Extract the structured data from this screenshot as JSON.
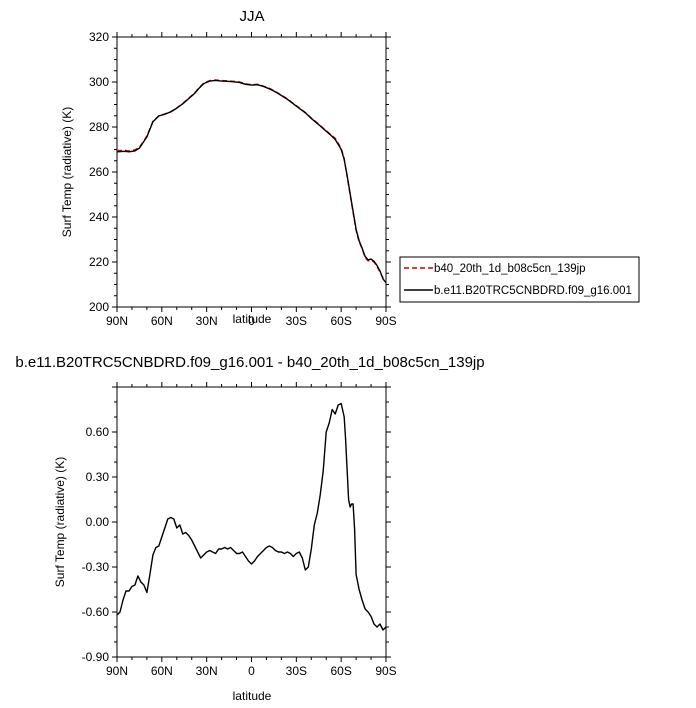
{
  "chart_data": [
    {
      "type": "line",
      "title": "JJA",
      "xlabel": "latitude",
      "ylabel": "Surf Temp (radiative) (K)",
      "xlim": [
        90,
        -90
      ],
      "ylim": [
        200,
        320
      ],
      "xticks": [
        "90N",
        "60N",
        "30N",
        "0",
        "30S",
        "60S",
        "90S"
      ],
      "yticks": [
        "200",
        "220",
        "240",
        "260",
        "280",
        "300",
        "320"
      ],
      "legend_position": "right",
      "grid": false,
      "series": [
        {
          "name": "b40_20th_1d_b08c5cn_139jp",
          "color": "#cc0000",
          "style": "dashed",
          "x": [
            90,
            85,
            82,
            78,
            75,
            70,
            66,
            62,
            58,
            54,
            50,
            46,
            42,
            38,
            35,
            32,
            28,
            24,
            20,
            16,
            12,
            8,
            4,
            0,
            -4,
            -8,
            -12,
            -16,
            -20,
            -24,
            -28,
            -32,
            -36,
            -40,
            -44,
            -48,
            -52,
            -56,
            -60,
            -62,
            -64,
            -66,
            -68,
            -70,
            -72,
            -74,
            -76,
            -78,
            -80,
            -82,
            -84,
            -86,
            -88,
            -90
          ],
          "y": [
            269.5,
            269.6,
            269.4,
            269.8,
            271,
            276,
            282.5,
            285,
            285.8,
            286.8,
            288.5,
            290.5,
            292.8,
            295.2,
            297.5,
            299.5,
            300.6,
            300.9,
            300.6,
            300.5,
            300.3,
            300,
            299.2,
            298.8,
            299,
            298.2,
            297.2,
            295.8,
            294.2,
            292.5,
            290.5,
            288.5,
            286.5,
            284,
            281.8,
            279.5,
            277.2,
            275,
            270.5,
            266,
            258,
            250,
            242,
            234,
            229,
            226,
            222,
            220.5,
            220.8,
            220,
            218,
            215.5,
            213,
            211.5
          ]
        },
        {
          "name": "b.e11.B20TRC5CNBDRD.f09_g16.001",
          "color": "#000000",
          "style": "solid",
          "x": [
            90,
            85,
            82,
            78,
            75,
            70,
            66,
            62,
            58,
            54,
            50,
            46,
            42,
            38,
            35,
            32,
            28,
            24,
            20,
            16,
            12,
            8,
            4,
            0,
            -4,
            -8,
            -12,
            -16,
            -20,
            -24,
            -28,
            -32,
            -36,
            -40,
            -44,
            -48,
            -52,
            -56,
            -60,
            -62,
            -64,
            -66,
            -68,
            -70,
            -72,
            -74,
            -76,
            -78,
            -80,
            -82,
            -84,
            -86,
            -88,
            -90
          ],
          "y": [
            269,
            269.2,
            269,
            269.4,
            270.6,
            275.6,
            282.3,
            284.9,
            285.7,
            286.7,
            288.4,
            290.3,
            292.6,
            295,
            297.3,
            299.3,
            300.4,
            300.7,
            300.4,
            300.3,
            300.1,
            299.8,
            299,
            298.6,
            298.8,
            298,
            297,
            295.6,
            294,
            292.3,
            290.3,
            288.3,
            286.3,
            283.8,
            281.6,
            279.3,
            277,
            274.5,
            270,
            265.5,
            258.5,
            250.5,
            242.5,
            234.5,
            229.5,
            226.2,
            222.5,
            221,
            221.3,
            220.3,
            218.5,
            216,
            212.5,
            210.8
          ]
        }
      ]
    },
    {
      "type": "line",
      "title": "b.e11.B20TRC5CNBDRD.f09_g16.001 - b40_20th_1d_b08c5cn_139jp",
      "xlabel": "latitude",
      "ylabel": "Surf Temp (radiative) (K)",
      "xlim": [
        90,
        -90
      ],
      "ylim": [
        -0.9,
        0.9
      ],
      "xticks": [
        "90N",
        "60N",
        "30N",
        "0",
        "30S",
        "60S",
        "90S"
      ],
      "yticks": [
        "-0.90",
        "-0.60",
        "-0.30",
        "0.00",
        "0.30",
        "0.60"
      ],
      "grid": false,
      "series": [
        {
          "color": "#000000",
          "style": "solid",
          "x": [
            90,
            88,
            86,
            84,
            82,
            80,
            78,
            76,
            74,
            72,
            70,
            68,
            66,
            64,
            62,
            60,
            58,
            56,
            54,
            52,
            50,
            48,
            46,
            44,
            42,
            40,
            38,
            36,
            34,
            32,
            30,
            28,
            26,
            24,
            22,
            20,
            18,
            16,
            14,
            12,
            10,
            8,
            6,
            4,
            2,
            0,
            -2,
            -4,
            -6,
            -8,
            -10,
            -12,
            -14,
            -16,
            -18,
            -20,
            -22,
            -24,
            -26,
            -28,
            -30,
            -32,
            -34,
            -36,
            -38,
            -40,
            -42,
            -44,
            -46,
            -48,
            -50,
            -52,
            -54,
            -56,
            -58,
            -60,
            -62,
            -63,
            -64,
            -65,
            -66,
            -67,
            -68,
            -69,
            -70,
            -72,
            -74,
            -76,
            -78,
            -80,
            -82,
            -84,
            -86,
            -88,
            -90
          ],
          "y": [
            -0.62,
            -0.6,
            -0.52,
            -0.46,
            -0.46,
            -0.43,
            -0.42,
            -0.36,
            -0.4,
            -0.42,
            -0.47,
            -0.35,
            -0.22,
            -0.17,
            -0.16,
            -0.1,
            -0.04,
            0.02,
            0.03,
            0.02,
            -0.04,
            -0.02,
            -0.08,
            -0.07,
            -0.09,
            -0.12,
            -0.16,
            -0.2,
            -0.24,
            -0.22,
            -0.2,
            -0.19,
            -0.2,
            -0.21,
            -0.18,
            -0.18,
            -0.17,
            -0.18,
            -0.17,
            -0.19,
            -0.21,
            -0.21,
            -0.2,
            -0.23,
            -0.26,
            -0.28,
            -0.26,
            -0.23,
            -0.21,
            -0.19,
            -0.17,
            -0.16,
            -0.17,
            -0.19,
            -0.2,
            -0.2,
            -0.21,
            -0.2,
            -0.21,
            -0.23,
            -0.21,
            -0.2,
            -0.24,
            -0.32,
            -0.3,
            -0.18,
            -0.02,
            0.06,
            0.18,
            0.34,
            0.6,
            0.66,
            0.75,
            0.72,
            0.78,
            0.79,
            0.7,
            0.55,
            0.35,
            0.15,
            0.1,
            0.12,
            0.12,
            -0.05,
            -0.35,
            -0.45,
            -0.52,
            -0.58,
            -0.6,
            -0.63,
            -0.68,
            -0.7,
            -0.68,
            -0.72,
            -0.7
          ]
        }
      ]
    }
  ]
}
